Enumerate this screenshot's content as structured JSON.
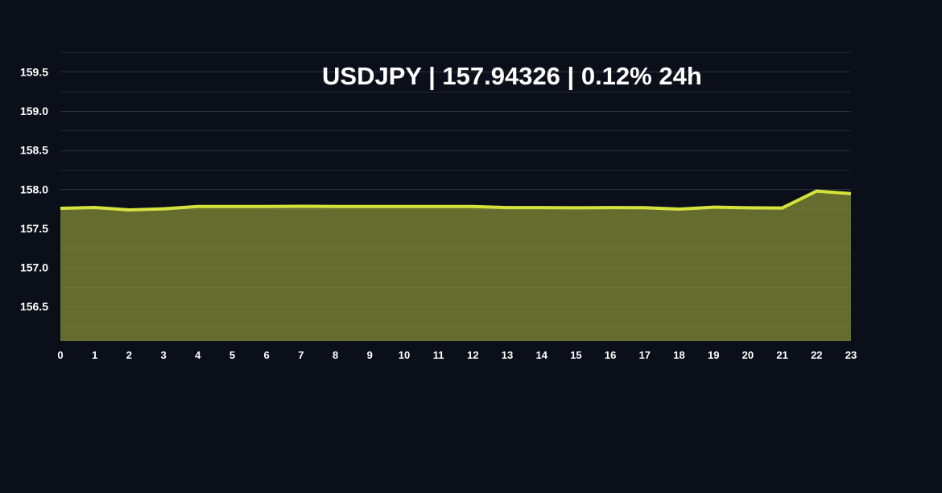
{
  "chart_data": {
    "type": "area",
    "title": "USDJPY | 157.94326 | 0.12% 24h",
    "symbol": "USDJPY",
    "last_price": "157.94326",
    "change_24h": "0.12% 24h",
    "xlabel": "",
    "ylabel": "",
    "x": [
      0,
      1,
      2,
      3,
      4,
      5,
      6,
      7,
      8,
      9,
      10,
      11,
      12,
      13,
      14,
      15,
      16,
      17,
      18,
      19,
      20,
      21,
      22,
      23
    ],
    "values": [
      157.756,
      157.766,
      157.735,
      157.75,
      157.78,
      157.78,
      157.78,
      157.782,
      157.78,
      157.78,
      157.78,
      157.78,
      157.78,
      157.765,
      157.765,
      157.762,
      157.765,
      157.763,
      157.746,
      157.77,
      157.762,
      157.76,
      157.976,
      157.943
    ],
    "x_ticks": [
      "0",
      "1",
      "2",
      "3",
      "4",
      "5",
      "6",
      "7",
      "8",
      "9",
      "10",
      "11",
      "12",
      "13",
      "14",
      "15",
      "16",
      "17",
      "18",
      "19",
      "20",
      "21",
      "22",
      "23"
    ],
    "y_ticks": [
      "156.5",
      "157.0",
      "157.5",
      "158.0",
      "158.5",
      "159.0",
      "159.5"
    ],
    "y_tick_values": [
      156.5,
      157.0,
      157.5,
      158.0,
      158.5,
      159.0,
      159.5
    ],
    "ylim": [
      156.06,
      159.75
    ],
    "xlim": [
      0,
      23
    ],
    "grid": true,
    "legend": null,
    "colors": {
      "background": "#0b0f19",
      "grid": "#1f2636",
      "line": "#d4e23a",
      "fill": "#656d2e",
      "text": "#ffffff"
    }
  }
}
